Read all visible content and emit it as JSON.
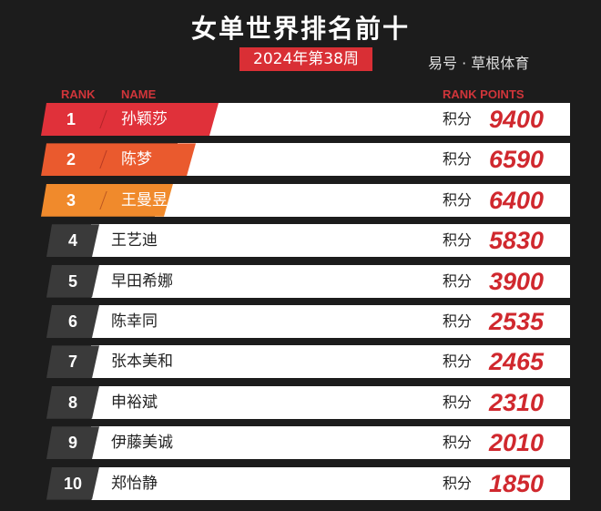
{
  "title": "女单世界排名前十",
  "week": "2024年第38周",
  "headers": {
    "rank": "RANK",
    "name": "NAME",
    "points": "RANK POINTS"
  },
  "points_label": "积分",
  "colors": {
    "top1": "#e0313a",
    "top2": "#ea5a2e",
    "top3": "#f08a2c",
    "other": "#3a3a3a",
    "points": "#d0282e"
  },
  "rows": [
    {
      "rank": "1",
      "name": "孙颖莎",
      "points": "9400"
    },
    {
      "rank": "2",
      "name": "陈梦",
      "points": "6590"
    },
    {
      "rank": "3",
      "name": "王曼昱",
      "points": "6400"
    },
    {
      "rank": "4",
      "name": "王艺迪",
      "points": "5830"
    },
    {
      "rank": "5",
      "name": "早田希娜",
      "points": "3900"
    },
    {
      "rank": "6",
      "name": "陈幸同",
      "points": "2535"
    },
    {
      "rank": "7",
      "name": "张本美和",
      "points": "2465"
    },
    {
      "rank": "8",
      "name": "申裕斌",
      "points": "2310"
    },
    {
      "rank": "9",
      "name": "伊藤美诚",
      "points": "2010"
    },
    {
      "rank": "10",
      "name": "郑怡静",
      "points": "1850"
    }
  ],
  "watermark": "易号 · 草根体育"
}
